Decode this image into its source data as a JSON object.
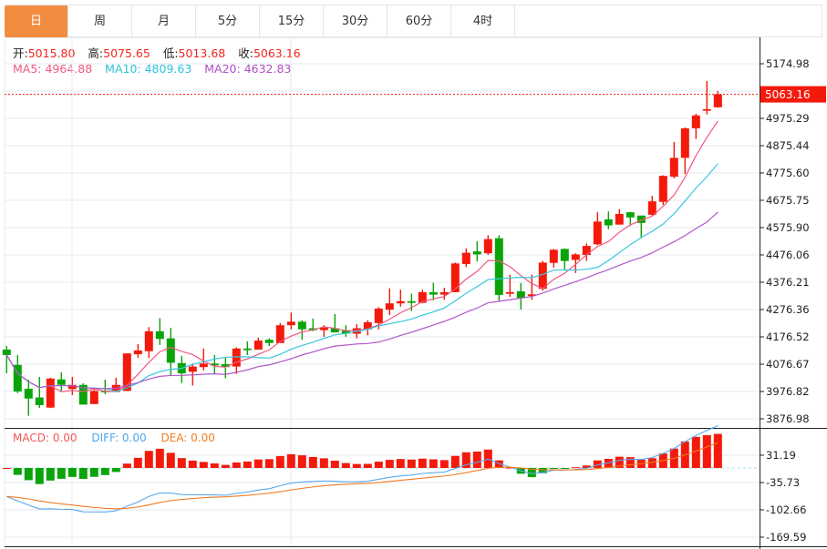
{
  "tabs": [
    {
      "label": "日",
      "active": true
    },
    {
      "label": "周"
    },
    {
      "label": "月"
    },
    {
      "label": "5分"
    },
    {
      "label": "15分"
    },
    {
      "label": "30分"
    },
    {
      "label": "60分"
    },
    {
      "label": "4时"
    }
  ],
  "info": {
    "open_label": "开:",
    "open": "5015.80",
    "high_label": "高:",
    "high": "5075.65",
    "low_label": "低:",
    "low": "5013.68",
    "close_label": "收:",
    "close": "5063.16",
    "ma5": "MA5: 4964.88",
    "ma10": "MA10: 4809.63",
    "ma20": "MA20: 4632.83"
  },
  "macd_info": {
    "macd": "MACD: 0.00",
    "diff": "DIFF: 0.00",
    "dea": "DEA: 0.00"
  },
  "colors": {
    "up": "#f31a0c",
    "down": "#0aa40a",
    "ma5": "#f2587e",
    "ma10": "#3ac6de",
    "ma20": "#b157c8",
    "diff": "#5aa8f0",
    "dea": "#f57a20",
    "accent": "#f28d40"
  },
  "chart_data": {
    "type": "candlestick",
    "ohlc_order": [
      "open",
      "high",
      "low",
      "close"
    ],
    "ohlc": [
      [
        4130,
        4143,
        4043,
        4110
      ],
      [
        4074,
        4110,
        3971,
        3977
      ],
      [
        3987,
        4020,
        3888,
        3951
      ],
      [
        3955,
        4030,
        3917,
        3927
      ],
      [
        3918,
        4027,
        3916,
        4024
      ],
      [
        4021,
        4047,
        3975,
        4001
      ],
      [
        3986,
        4030,
        3964,
        4001
      ],
      [
        4001,
        4007,
        3929,
        3929
      ],
      [
        3931,
        3983,
        3931,
        3979
      ],
      [
        3979,
        4020,
        3967,
        3974
      ],
      [
        3975,
        4027,
        3975,
        4001
      ],
      [
        3979,
        4116,
        3979,
        4116
      ],
      [
        4113,
        4150,
        4100,
        4127
      ],
      [
        4124,
        4212,
        4099,
        4197
      ],
      [
        4197,
        4245,
        4147,
        4169
      ],
      [
        4171,
        4210,
        4034,
        4082
      ],
      [
        4081,
        4107,
        4008,
        4043
      ],
      [
        4049,
        4079,
        3999,
        4068
      ],
      [
        4066,
        4134,
        4054,
        4079
      ],
      [
        4079,
        4110,
        4040,
        4072
      ],
      [
        4077,
        4101,
        4025,
        4066
      ],
      [
        4068,
        4138,
        4041,
        4134
      ],
      [
        4134,
        4160,
        4110,
        4128
      ],
      [
        4130,
        4173,
        4130,
        4163
      ],
      [
        4166,
        4171,
        4143,
        4154
      ],
      [
        4154,
        4227,
        4154,
        4219
      ],
      [
        4219,
        4265,
        4204,
        4232
      ],
      [
        4232,
        4237,
        4166,
        4204
      ],
      [
        4208,
        4243,
        4197,
        4201
      ],
      [
        4201,
        4219,
        4177,
        4210
      ],
      [
        4208,
        4260,
        4193,
        4193
      ],
      [
        4199,
        4219,
        4177,
        4188
      ],
      [
        4188,
        4223,
        4171,
        4208
      ],
      [
        4204,
        4237,
        4182,
        4230
      ],
      [
        4227,
        4285,
        4204,
        4280
      ],
      [
        4276,
        4354,
        4256,
        4299
      ],
      [
        4299,
        4349,
        4287,
        4307
      ],
      [
        4307,
        4335,
        4271,
        4301
      ],
      [
        4301,
        4349,
        4299,
        4340
      ],
      [
        4340,
        4374,
        4310,
        4331
      ],
      [
        4331,
        4356,
        4312,
        4340
      ],
      [
        4340,
        4448,
        4340,
        4445
      ],
      [
        4443,
        4500,
        4432,
        4484
      ],
      [
        4489,
        4526,
        4452,
        4478
      ],
      [
        4482,
        4548,
        4476,
        4534
      ],
      [
        4537,
        4548,
        4307,
        4330
      ],
      [
        4334,
        4404,
        4323,
        4340
      ],
      [
        4343,
        4373,
        4276,
        4319
      ],
      [
        4326,
        4404,
        4312,
        4332
      ],
      [
        4352,
        4454,
        4345,
        4448
      ],
      [
        4447,
        4498,
        4430,
        4495
      ],
      [
        4498,
        4500,
        4423,
        4454
      ],
      [
        4458,
        4482,
        4410,
        4478
      ],
      [
        4476,
        4518,
        4454,
        4509
      ],
      [
        4515,
        4632,
        4512,
        4598
      ],
      [
        4606,
        4635,
        4570,
        4584
      ],
      [
        4587,
        4643,
        4587,
        4626
      ],
      [
        4632,
        4634,
        4582,
        4613
      ],
      [
        4620,
        4620,
        4537,
        4593
      ],
      [
        4623,
        4692,
        4620,
        4672
      ],
      [
        4670,
        4767,
        4659,
        4765
      ],
      [
        4762,
        4889,
        4756,
        4831
      ],
      [
        4831,
        4942,
        4772,
        4939
      ],
      [
        4939,
        4992,
        4900,
        4986
      ],
      [
        5003,
        5112,
        4990,
        5009
      ],
      [
        5015.8,
        5075.65,
        5013.68,
        5063.16
      ]
    ],
    "last_price": "5063.16",
    "price_ticks": [
      "5174.98",
      "4975.29",
      "4875.44",
      "4775.60",
      "4675.75",
      "4575.90",
      "4476.06",
      "4376.21",
      "4276.36",
      "4176.52",
      "4076.67",
      "3976.82",
      "3876.98"
    ],
    "price_range": [
      3876.98,
      5174.98
    ],
    "macd_ticks": [
      "31.19",
      "-35.73",
      "-102.66",
      "-169.59"
    ],
    "macd_range": [
      -169.59,
      31.19
    ],
    "indicators": [
      "MA5",
      "MA10",
      "MA20",
      "MACD(12,26,9)"
    ],
    "grid": true
  }
}
